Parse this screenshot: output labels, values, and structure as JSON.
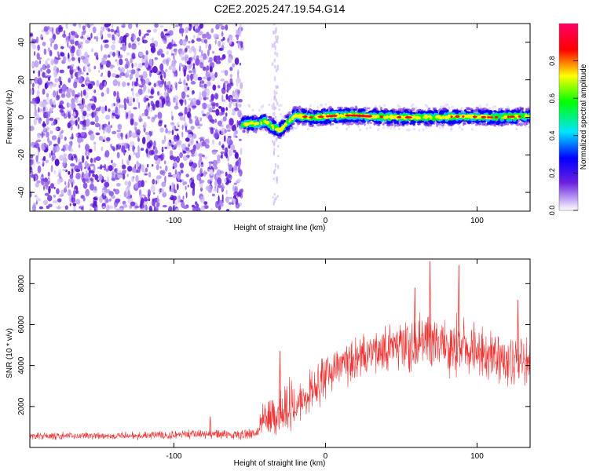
{
  "figure_title": "C2E2.2025.247.19.54.G14",
  "chart_data": [
    {
      "type": "heatmap",
      "name": "spectrogram",
      "xlabel": "Height of straight line (km)",
      "ylabel": "Frequency (Hz)",
      "xlim": [
        -195,
        135
      ],
      "ylim": [
        -50,
        50
      ],
      "x_ticks": [
        -100,
        0,
        100
      ],
      "x_tick_labels": [
        "-100",
        "0",
        "100"
      ],
      "y_ticks": [
        -40,
        -20,
        0,
        20,
        40
      ],
      "y_tick_labels": [
        "-40",
        "-20",
        "0",
        "20",
        "40"
      ],
      "noise_region_x": [
        -195,
        -55
      ],
      "sparse_column_x": -33,
      "signal_track": {
        "x": [
          -55,
          -50,
          -45,
          -40,
          -35,
          -30,
          -25,
          -20,
          -10,
          0,
          10,
          20,
          30,
          50,
          70,
          90,
          110,
          130
        ],
        "y": [
          -4,
          -3,
          -3.5,
          -2,
          -5,
          -7,
          -3,
          1,
          0,
          0.5,
          1,
          1,
          0.5,
          0,
          0,
          0.5,
          0,
          0.5
        ],
        "peak_x_range": [
          15,
          30
        ]
      },
      "colorbar": {
        "label": "Normalized spectral amplitude",
        "range": [
          0,
          1
        ],
        "ticks": [
          0.0,
          0.2,
          0.4,
          0.6,
          0.8
        ],
        "tick_labels": [
          "0.0",
          "0.2",
          "0.4",
          "0.6",
          "0.8"
        ],
        "colors": [
          "#ffffff",
          "#c9b3f5",
          "#6a1fe0",
          "#0000ff",
          "#00e5ff",
          "#00ff00",
          "#ffff00",
          "#ff0000",
          "#ff0066"
        ]
      }
    },
    {
      "type": "line",
      "name": "snr",
      "xlabel": "Height of straight line (km)",
      "ylabel": "SNR (10 * v/v)",
      "xlim": [
        -195,
        135
      ],
      "ylim": [
        0,
        9200
      ],
      "x_ticks": [
        -100,
        0,
        100
      ],
      "x_tick_labels": [
        "-100",
        "0",
        "100"
      ],
      "y_ticks": [
        2000,
        4000,
        6000,
        8000
      ],
      "y_tick_labels": [
        "2000",
        "4000",
        "6000",
        "8000"
      ],
      "color": "#ee3333",
      "envelope": {
        "x": [
          -195,
          -140,
          -100,
          -80,
          -60,
          -45,
          -42,
          -35,
          -30,
          -20,
          -10,
          0,
          10,
          20,
          30,
          40,
          50,
          60,
          70,
          80,
          90,
          100,
          110,
          120,
          130,
          135
        ],
        "mean": [
          550,
          580,
          620,
          650,
          620,
          700,
          1400,
          1500,
          1800,
          2200,
          2800,
          3400,
          3900,
          4300,
          4600,
          4800,
          5000,
          5100,
          5100,
          5000,
          4900,
          4700,
          4500,
          4300,
          4200,
          4200
        ],
        "spread": [
          200,
          220,
          250,
          280,
          250,
          300,
          800,
          1300,
          1500,
          1400,
          1300,
          1300,
          1200,
          1200,
          1300,
          1400,
          1500,
          1600,
          1700,
          1700,
          1700,
          1600,
          1500,
          1500,
          1500,
          1500
        ]
      },
      "peaks": [
        {
          "x": -76,
          "y": 1500
        },
        {
          "x": -30,
          "y": 4700
        },
        {
          "x": 59,
          "y": 7800
        },
        {
          "x": 69,
          "y": 9100
        },
        {
          "x": 88,
          "y": 8900
        },
        {
          "x": 127,
          "y": 7200
        }
      ]
    }
  ]
}
